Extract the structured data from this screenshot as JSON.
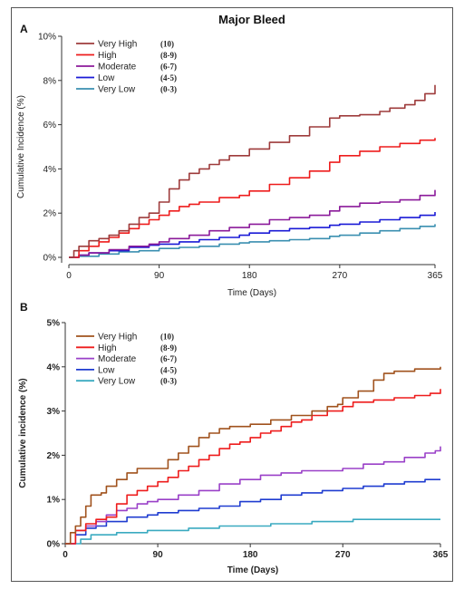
{
  "chart_data": [
    {
      "type": "line",
      "panel_label": "A",
      "title": "Major Bleed",
      "xlabel": "Time (Days)",
      "ylabel": "Cumulative Incidence (%)",
      "xlim": [
        0,
        365
      ],
      "ylim": [
        0,
        10
      ],
      "x_ticks": [
        "0",
        "90",
        "180",
        "270",
        "365"
      ],
      "y_ticks": [
        "0%",
        "2%",
        "4%",
        "6%",
        "8%",
        "10%"
      ],
      "legend_position": "top-left",
      "series": [
        {
          "name": "Very High",
          "score": "(10)",
          "color": "#9e3b3b",
          "points": [
            [
              0,
              0
            ],
            [
              5,
              0.3
            ],
            [
              10,
              0.5
            ],
            [
              20,
              0.75
            ],
            [
              30,
              0.85
            ],
            [
              40,
              1.0
            ],
            [
              50,
              1.2
            ],
            [
              60,
              1.5
            ],
            [
              70,
              1.8
            ],
            [
              80,
              2.0
            ],
            [
              90,
              2.5
            ],
            [
              100,
              3.1
            ],
            [
              110,
              3.5
            ],
            [
              120,
              3.8
            ],
            [
              130,
              4.0
            ],
            [
              140,
              4.2
            ],
            [
              150,
              4.4
            ],
            [
              160,
              4.6
            ],
            [
              180,
              4.9
            ],
            [
              200,
              5.2
            ],
            [
              220,
              5.5
            ],
            [
              240,
              5.9
            ],
            [
              260,
              6.3
            ],
            [
              270,
              6.4
            ],
            [
              290,
              6.45
            ],
            [
              300,
              6.45
            ],
            [
              310,
              6.6
            ],
            [
              320,
              6.75
            ],
            [
              335,
              6.9
            ],
            [
              345,
              7.1
            ],
            [
              355,
              7.4
            ],
            [
              365,
              7.8
            ]
          ]
        },
        {
          "name": "High",
          "score": "(8-9)",
          "color": "#ee1c1c",
          "points": [
            [
              0,
              0
            ],
            [
              10,
              0.3
            ],
            [
              20,
              0.5
            ],
            [
              30,
              0.7
            ],
            [
              40,
              0.9
            ],
            [
              50,
              1.1
            ],
            [
              60,
              1.3
            ],
            [
              70,
              1.5
            ],
            [
              80,
              1.7
            ],
            [
              90,
              1.9
            ],
            [
              100,
              2.1
            ],
            [
              110,
              2.3
            ],
            [
              120,
              2.4
            ],
            [
              130,
              2.5
            ],
            [
              150,
              2.7
            ],
            [
              170,
              2.8
            ],
            [
              180,
              3.0
            ],
            [
              200,
              3.3
            ],
            [
              220,
              3.6
            ],
            [
              240,
              3.9
            ],
            [
              260,
              4.3
            ],
            [
              270,
              4.6
            ],
            [
              290,
              4.8
            ],
            [
              310,
              5.0
            ],
            [
              330,
              5.15
            ],
            [
              350,
              5.3
            ],
            [
              365,
              5.4
            ]
          ]
        },
        {
          "name": "Moderate",
          "score": "(6-7)",
          "color": "#8b1a9a",
          "points": [
            [
              0,
              0
            ],
            [
              10,
              0.1
            ],
            [
              20,
              0.2
            ],
            [
              40,
              0.35
            ],
            [
              60,
              0.5
            ],
            [
              80,
              0.6
            ],
            [
              90,
              0.7
            ],
            [
              100,
              0.85
            ],
            [
              120,
              1.0
            ],
            [
              140,
              1.2
            ],
            [
              160,
              1.35
            ],
            [
              180,
              1.5
            ],
            [
              200,
              1.7
            ],
            [
              220,
              1.8
            ],
            [
              240,
              1.9
            ],
            [
              260,
              2.1
            ],
            [
              270,
              2.3
            ],
            [
              290,
              2.45
            ],
            [
              310,
              2.5
            ],
            [
              330,
              2.6
            ],
            [
              350,
              2.8
            ],
            [
              365,
              3.05
            ]
          ]
        },
        {
          "name": "Low",
          "score": "(4-5)",
          "color": "#1a1ad6",
          "points": [
            [
              0,
              0
            ],
            [
              10,
              0.1
            ],
            [
              20,
              0.2
            ],
            [
              40,
              0.3
            ],
            [
              60,
              0.45
            ],
            [
              80,
              0.55
            ],
            [
              90,
              0.6
            ],
            [
              110,
              0.7
            ],
            [
              130,
              0.8
            ],
            [
              150,
              0.9
            ],
            [
              170,
              1.0
            ],
            [
              180,
              1.1
            ],
            [
              200,
              1.2
            ],
            [
              220,
              1.3
            ],
            [
              240,
              1.35
            ],
            [
              260,
              1.45
            ],
            [
              270,
              1.5
            ],
            [
              290,
              1.6
            ],
            [
              310,
              1.7
            ],
            [
              330,
              1.8
            ],
            [
              350,
              1.9
            ],
            [
              365,
              2.05
            ]
          ]
        },
        {
          "name": "Very Low",
          "score": "(0-3)",
          "color": "#3a8fb0",
          "points": [
            [
              0,
              0
            ],
            [
              10,
              0.05
            ],
            [
              30,
              0.15
            ],
            [
              50,
              0.25
            ],
            [
              70,
              0.3
            ],
            [
              90,
              0.4
            ],
            [
              110,
              0.45
            ],
            [
              130,
              0.5
            ],
            [
              150,
              0.6
            ],
            [
              170,
              0.65
            ],
            [
              180,
              0.7
            ],
            [
              200,
              0.75
            ],
            [
              220,
              0.8
            ],
            [
              240,
              0.85
            ],
            [
              260,
              0.95
            ],
            [
              270,
              1.0
            ],
            [
              290,
              1.1
            ],
            [
              310,
              1.2
            ],
            [
              330,
              1.3
            ],
            [
              350,
              1.4
            ],
            [
              365,
              1.5
            ]
          ]
        }
      ]
    },
    {
      "type": "line",
      "panel_label": "B",
      "title": "",
      "xlabel": "Time (Days)",
      "ylabel": "Cumulative incidence (%)",
      "xlim": [
        0,
        365
      ],
      "ylim": [
        0,
        5
      ],
      "x_ticks": [
        "0",
        "90",
        "180",
        "270",
        "365"
      ],
      "y_ticks": [
        "0%",
        "1%",
        "2%",
        "3%",
        "4%",
        "5%"
      ],
      "legend_position": "top-left",
      "series": [
        {
          "name": "Very High",
          "score": "(10)",
          "color": "#a0521d",
          "points": [
            [
              0,
              0
            ],
            [
              5,
              0.25
            ],
            [
              10,
              0.4
            ],
            [
              15,
              0.6
            ],
            [
              20,
              0.85
            ],
            [
              25,
              1.1
            ],
            [
              35,
              1.15
            ],
            [
              40,
              1.3
            ],
            [
              50,
              1.45
            ],
            [
              60,
              1.6
            ],
            [
              70,
              1.7
            ],
            [
              90,
              1.7
            ],
            [
              100,
              1.9
            ],
            [
              110,
              2.05
            ],
            [
              120,
              2.2
            ],
            [
              130,
              2.4
            ],
            [
              140,
              2.5
            ],
            [
              150,
              2.6
            ],
            [
              160,
              2.65
            ],
            [
              180,
              2.7
            ],
            [
              200,
              2.8
            ],
            [
              220,
              2.9
            ],
            [
              240,
              3.0
            ],
            [
              255,
              3.1
            ],
            [
              265,
              3.15
            ],
            [
              270,
              3.3
            ],
            [
              285,
              3.45
            ],
            [
              300,
              3.7
            ],
            [
              310,
              3.85
            ],
            [
              320,
              3.9
            ],
            [
              340,
              3.95
            ],
            [
              365,
              4.0
            ]
          ]
        },
        {
          "name": "High",
          "score": "(8-9)",
          "color": "#ee1c1c",
          "points": [
            [
              0,
              0
            ],
            [
              10,
              0.3
            ],
            [
              20,
              0.45
            ],
            [
              30,
              0.55
            ],
            [
              40,
              0.6
            ],
            [
              50,
              0.9
            ],
            [
              60,
              1.1
            ],
            [
              70,
              1.2
            ],
            [
              80,
              1.3
            ],
            [
              90,
              1.4
            ],
            [
              100,
              1.5
            ],
            [
              110,
              1.65
            ],
            [
              120,
              1.75
            ],
            [
              130,
              1.9
            ],
            [
              140,
              2.0
            ],
            [
              150,
              2.15
            ],
            [
              160,
              2.25
            ],
            [
              170,
              2.3
            ],
            [
              180,
              2.4
            ],
            [
              190,
              2.5
            ],
            [
              200,
              2.55
            ],
            [
              210,
              2.65
            ],
            [
              220,
              2.75
            ],
            [
              230,
              2.8
            ],
            [
              240,
              2.9
            ],
            [
              255,
              3.0
            ],
            [
              270,
              3.1
            ],
            [
              280,
              3.2
            ],
            [
              300,
              3.25
            ],
            [
              320,
              3.3
            ],
            [
              340,
              3.35
            ],
            [
              355,
              3.4
            ],
            [
              365,
              3.5
            ]
          ]
        },
        {
          "name": "Moderate",
          "score": "(6-7)",
          "color": "#9a40c8",
          "points": [
            [
              0,
              0
            ],
            [
              10,
              0.3
            ],
            [
              20,
              0.4
            ],
            [
              30,
              0.5
            ],
            [
              40,
              0.65
            ],
            [
              50,
              0.75
            ],
            [
              60,
              0.8
            ],
            [
              70,
              0.9
            ],
            [
              80,
              0.95
            ],
            [
              90,
              1.0
            ],
            [
              110,
              1.1
            ],
            [
              130,
              1.2
            ],
            [
              150,
              1.35
            ],
            [
              170,
              1.45
            ],
            [
              190,
              1.55
            ],
            [
              210,
              1.6
            ],
            [
              230,
              1.65
            ],
            [
              250,
              1.65
            ],
            [
              270,
              1.7
            ],
            [
              290,
              1.8
            ],
            [
              310,
              1.85
            ],
            [
              330,
              1.95
            ],
            [
              350,
              2.05
            ],
            [
              360,
              2.1
            ],
            [
              365,
              2.2
            ]
          ]
        },
        {
          "name": "Low",
          "score": "(4-5)",
          "color": "#1f3cd0",
          "points": [
            [
              0,
              0
            ],
            [
              10,
              0.2
            ],
            [
              20,
              0.35
            ],
            [
              30,
              0.4
            ],
            [
              40,
              0.5
            ],
            [
              60,
              0.6
            ],
            [
              80,
              0.65
            ],
            [
              90,
              0.7
            ],
            [
              110,
              0.75
            ],
            [
              130,
              0.8
            ],
            [
              150,
              0.85
            ],
            [
              170,
              0.95
            ],
            [
              190,
              1.0
            ],
            [
              210,
              1.1
            ],
            [
              230,
              1.15
            ],
            [
              250,
              1.2
            ],
            [
              270,
              1.25
            ],
            [
              290,
              1.3
            ],
            [
              310,
              1.35
            ],
            [
              330,
              1.4
            ],
            [
              350,
              1.45
            ],
            [
              365,
              1.45
            ]
          ]
        },
        {
          "name": "Very Low",
          "score": "(0-3)",
          "color": "#3aaac0",
          "points": [
            [
              0,
              0
            ],
            [
              15,
              0.1
            ],
            [
              25,
              0.2
            ],
            [
              50,
              0.25
            ],
            [
              80,
              0.3
            ],
            [
              120,
              0.35
            ],
            [
              150,
              0.4
            ],
            [
              200,
              0.45
            ],
            [
              240,
              0.5
            ],
            [
              280,
              0.55
            ],
            [
              320,
              0.55
            ],
            [
              365,
              0.55
            ]
          ]
        }
      ]
    }
  ]
}
